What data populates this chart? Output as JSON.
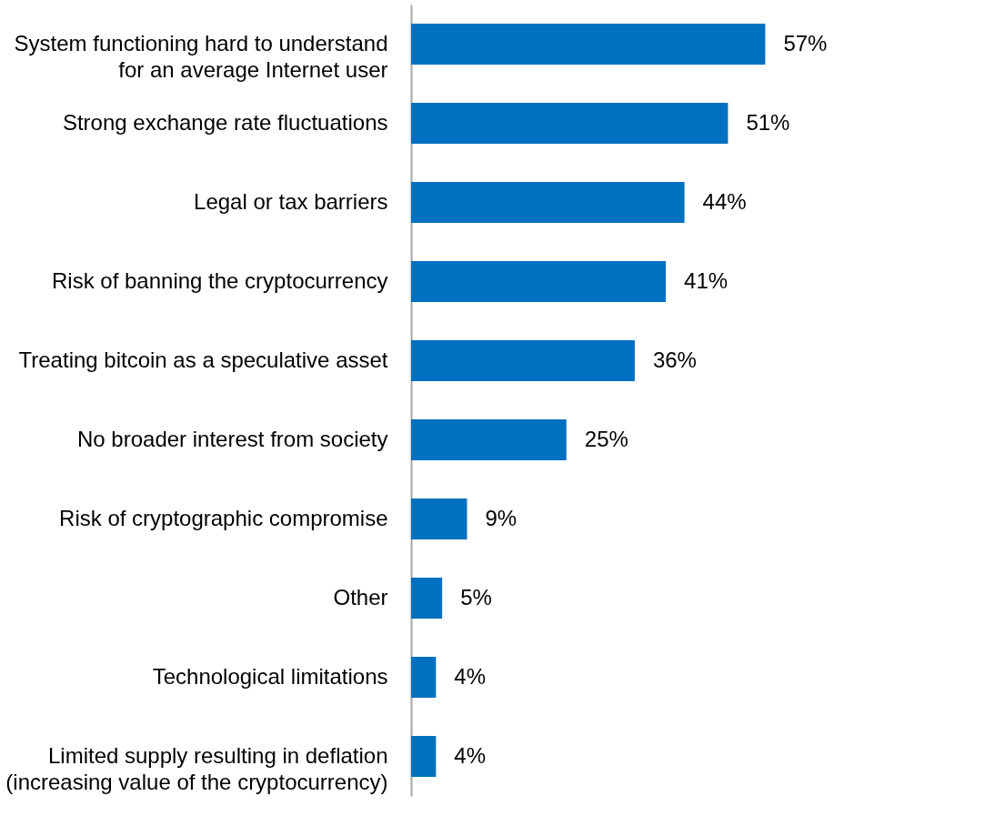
{
  "chart_data": {
    "type": "bar",
    "orientation": "horizontal",
    "categories": [
      "System functioning hard to understand\nfor an average Internet user",
      "Strong exchange rate fluctuations",
      "Legal or tax barriers",
      "Risk of banning the cryptocurrency",
      "Treating bitcoin as a speculative asset",
      "No broader interest from society",
      "Risk of cryptographic compromise",
      "Other",
      "Technological limitations",
      "Limited supply resulting in deflation\n(increasing value of the cryptocurrency)"
    ],
    "values": [
      57,
      51,
      44,
      41,
      36,
      25,
      9,
      5,
      4,
      4
    ],
    "value_labels": [
      "57%",
      "51%",
      "44%",
      "41%",
      "36%",
      "25%",
      "9%",
      "5%",
      "4%",
      "4%"
    ],
    "color": "#0070c0"
  }
}
